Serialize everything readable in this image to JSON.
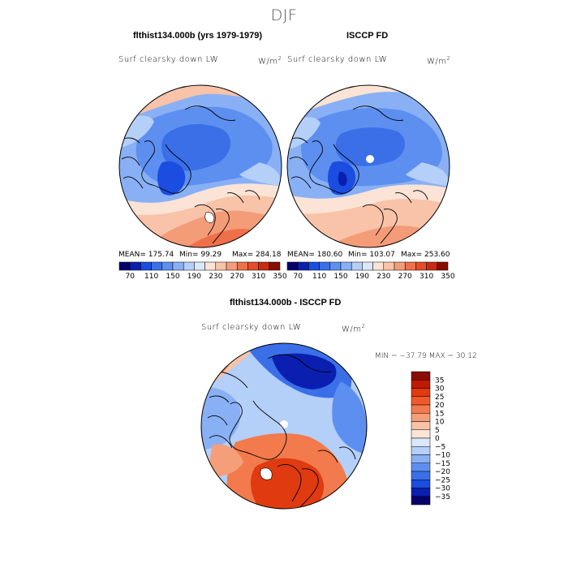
{
  "title": "DJF",
  "chart_data": [
    {
      "type": "heatmap",
      "projection": "north polar stereographic",
      "title": "flthist134.000b (yrs 1979-1979)",
      "subtitle": "Surf clearsky down LW",
      "units_prefix": "W/m",
      "units_exp": "2",
      "stats": {
        "mean_label": "MEAN= 175.74",
        "min_label": "Min=  99.29",
        "max_label": "Max= 284.18"
      },
      "stats_values": {
        "mean": 175.74,
        "min": 99.29,
        "max": 284.18
      },
      "colorbar_orientation": "horizontal",
      "colorbar_ticks": [
        "70",
        "110",
        "150",
        "190",
        "230",
        "270",
        "310",
        "350"
      ]
    },
    {
      "type": "heatmap",
      "projection": "north polar stereographic",
      "title": "ISCCP FD",
      "subtitle": "Surf clearsky down LW",
      "units_prefix": "W/m",
      "units_exp": "2",
      "stats": {
        "mean_label": "MEAN= 180.60",
        "min_label": "Min= 103.07",
        "max_label": "Max= 253.60"
      },
      "stats_values": {
        "mean": 180.6,
        "min": 103.07,
        "max": 253.6
      },
      "colorbar_orientation": "horizontal",
      "colorbar_ticks": [
        "70",
        "110",
        "150",
        "190",
        "230",
        "270",
        "310",
        "350"
      ]
    },
    {
      "type": "heatmap",
      "projection": "north polar stereographic",
      "title": "flthist134.000b - ISCCP FD",
      "subtitle": "Surf clearsky down LW",
      "units_prefix": "W/m",
      "units_exp": "2",
      "stats_label": "MIN = −37.79  MAX =   30.12",
      "stats_values": {
        "min": -37.79,
        "max": 30.12
      },
      "colorbar_orientation": "vertical",
      "colorbar_ticks": [
        "35",
        "30",
        "25",
        "20",
        "15",
        "10",
        "5",
        "0",
        "−5",
        "−10",
        "−15",
        "−20",
        "−25",
        "−30",
        "−35"
      ]
    }
  ],
  "colors": {
    "abs_scale": [
      "#08006b",
      "#0a1fb0",
      "#1a4de0",
      "#3a6fe8",
      "#5d8ff0",
      "#89b0f5",
      "#b4cff8",
      "#dbe8fb",
      "#fbe3d6",
      "#f8c3a8",
      "#f49c78",
      "#ee704b",
      "#e44c2a",
      "#c92b10",
      "#8a0c00"
    ],
    "diff_scale": [
      "#8a0c00",
      "#c01a00",
      "#e03a10",
      "#f05a2a",
      "#f27a4d",
      "#f59e7a",
      "#f8c2a5",
      "#fce5d6",
      "#dbe8fb",
      "#b4cff8",
      "#89b0f5",
      "#5d8ff0",
      "#3a6fe8",
      "#1a4de0",
      "#0a1fb0",
      "#08006b"
    ]
  }
}
